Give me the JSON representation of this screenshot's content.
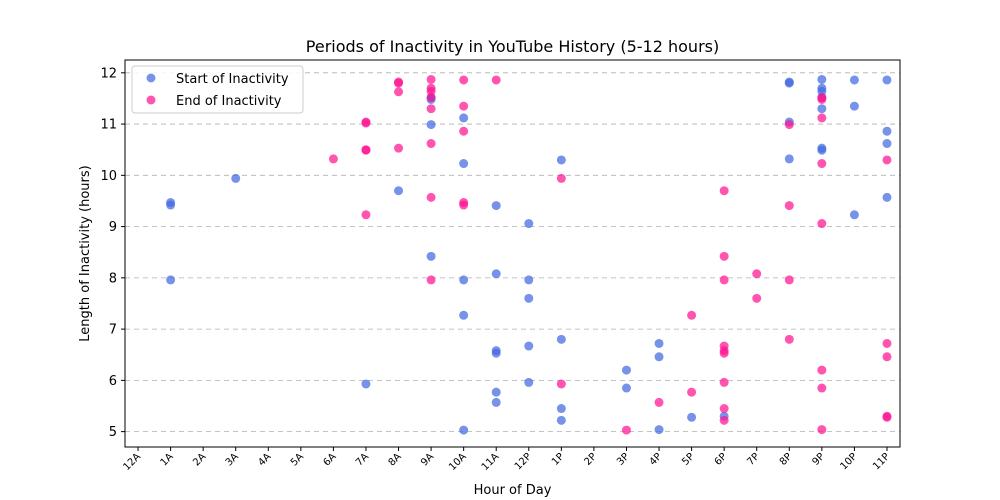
{
  "chart_data": {
    "type": "scatter",
    "title": "Periods of Inactivity in YouTube History (5-12 hours)",
    "xlabel": "Hour of Day",
    "ylabel": "Length of Inactivity (hours)",
    "xlim": [
      -0.4,
      23.4
    ],
    "ylim": [
      4.7,
      12.25
    ],
    "x_ticks": [
      0,
      1,
      2,
      3,
      4,
      5,
      6,
      7,
      8,
      9,
      10,
      11,
      12,
      13,
      14,
      15,
      16,
      17,
      18,
      19,
      20,
      21,
      22,
      23
    ],
    "x_tick_labels": [
      "12A",
      "1A",
      "2A",
      "3A",
      "4A",
      "5A",
      "6A",
      "7A",
      "8A",
      "9A",
      "10A",
      "11A",
      "12P",
      "1P",
      "2P",
      "3P",
      "4P",
      "5P",
      "6P",
      "7P",
      "8P",
      "9P",
      "10P",
      "11P"
    ],
    "y_ticks": [
      5,
      6,
      7,
      8,
      9,
      10,
      11,
      12
    ],
    "grid": "y-dashed",
    "legend_position": "top-left",
    "series": [
      {
        "name": "Start of Inactivity",
        "color": "#4169e1",
        "points": [
          [
            1,
            9.47
          ],
          [
            1,
            9.42
          ],
          [
            1,
            7.96
          ],
          [
            3,
            9.94
          ],
          [
            7,
            5.93
          ],
          [
            8,
            9.7
          ],
          [
            9,
            11.52
          ],
          [
            9,
            11.48
          ],
          [
            9,
            10.99
          ],
          [
            9,
            8.42
          ],
          [
            10,
            11.12
          ],
          [
            10,
            10.23
          ],
          [
            10,
            7.96
          ],
          [
            10,
            7.27
          ],
          [
            10,
            5.03
          ],
          [
            11,
            9.41
          ],
          [
            11,
            8.08
          ],
          [
            11,
            6.58
          ],
          [
            11,
            6.53
          ],
          [
            11,
            5.77
          ],
          [
            11,
            5.57
          ],
          [
            12,
            9.06
          ],
          [
            12,
            7.96
          ],
          [
            12,
            7.6
          ],
          [
            12,
            6.67
          ],
          [
            12,
            5.96
          ],
          [
            13,
            10.3
          ],
          [
            13,
            6.8
          ],
          [
            13,
            5.45
          ],
          [
            13,
            5.22
          ],
          [
            15,
            6.2
          ],
          [
            15,
            5.85
          ],
          [
            16,
            6.72
          ],
          [
            16,
            6.46
          ],
          [
            16,
            5.04
          ],
          [
            17,
            5.28
          ],
          [
            18,
            5.3
          ],
          [
            20,
            11.82
          ],
          [
            20,
            11.8
          ],
          [
            20,
            11.04
          ],
          [
            20,
            10.32
          ],
          [
            21,
            11.87
          ],
          [
            21,
            11.7
          ],
          [
            21,
            11.64
          ],
          [
            21,
            11.52
          ],
          [
            21,
            11.3
          ],
          [
            21,
            10.53
          ],
          [
            21,
            10.49
          ],
          [
            22,
            11.86
          ],
          [
            22,
            11.35
          ],
          [
            22,
            9.23
          ],
          [
            23,
            11.86
          ],
          [
            23,
            10.86
          ],
          [
            23,
            10.62
          ],
          [
            23,
            9.57
          ]
        ]
      },
      {
        "name": "End of Inactivity",
        "color": "#ff1493",
        "points": [
          [
            6,
            10.32
          ],
          [
            7,
            11.04
          ],
          [
            7,
            11.02
          ],
          [
            7,
            10.5
          ],
          [
            7,
            10.49
          ],
          [
            7,
            9.23
          ],
          [
            8,
            11.82
          ],
          [
            8,
            11.8
          ],
          [
            8,
            11.63
          ],
          [
            8,
            10.53
          ],
          [
            9,
            11.87
          ],
          [
            9,
            11.7
          ],
          [
            9,
            11.64
          ],
          [
            9,
            11.52
          ],
          [
            9,
            11.3
          ],
          [
            9,
            10.62
          ],
          [
            9,
            9.57
          ],
          [
            9,
            7.96
          ],
          [
            10,
            11.86
          ],
          [
            10,
            11.35
          ],
          [
            10,
            10.86
          ],
          [
            10,
            9.47
          ],
          [
            10,
            9.42
          ],
          [
            11,
            11.86
          ],
          [
            13,
            9.94
          ],
          [
            13,
            5.93
          ],
          [
            15,
            5.03
          ],
          [
            16,
            5.57
          ],
          [
            17,
            7.27
          ],
          [
            17,
            5.77
          ],
          [
            18,
            9.7
          ],
          [
            18,
            8.42
          ],
          [
            18,
            7.96
          ],
          [
            18,
            6.67
          ],
          [
            18,
            6.58
          ],
          [
            18,
            6.53
          ],
          [
            18,
            5.96
          ],
          [
            18,
            5.45
          ],
          [
            18,
            5.22
          ],
          [
            19,
            8.08
          ],
          [
            19,
            7.6
          ],
          [
            20,
            10.99
          ],
          [
            20,
            9.41
          ],
          [
            20,
            7.96
          ],
          [
            20,
            6.8
          ],
          [
            21,
            11.52
          ],
          [
            21,
            11.48
          ],
          [
            21,
            11.12
          ],
          [
            21,
            10.23
          ],
          [
            21,
            9.06
          ],
          [
            21,
            6.2
          ],
          [
            21,
            5.85
          ],
          [
            21,
            5.04
          ],
          [
            23,
            10.3
          ],
          [
            23,
            6.72
          ],
          [
            23,
            6.46
          ],
          [
            23,
            5.3
          ],
          [
            23,
            5.28
          ]
        ]
      }
    ]
  }
}
